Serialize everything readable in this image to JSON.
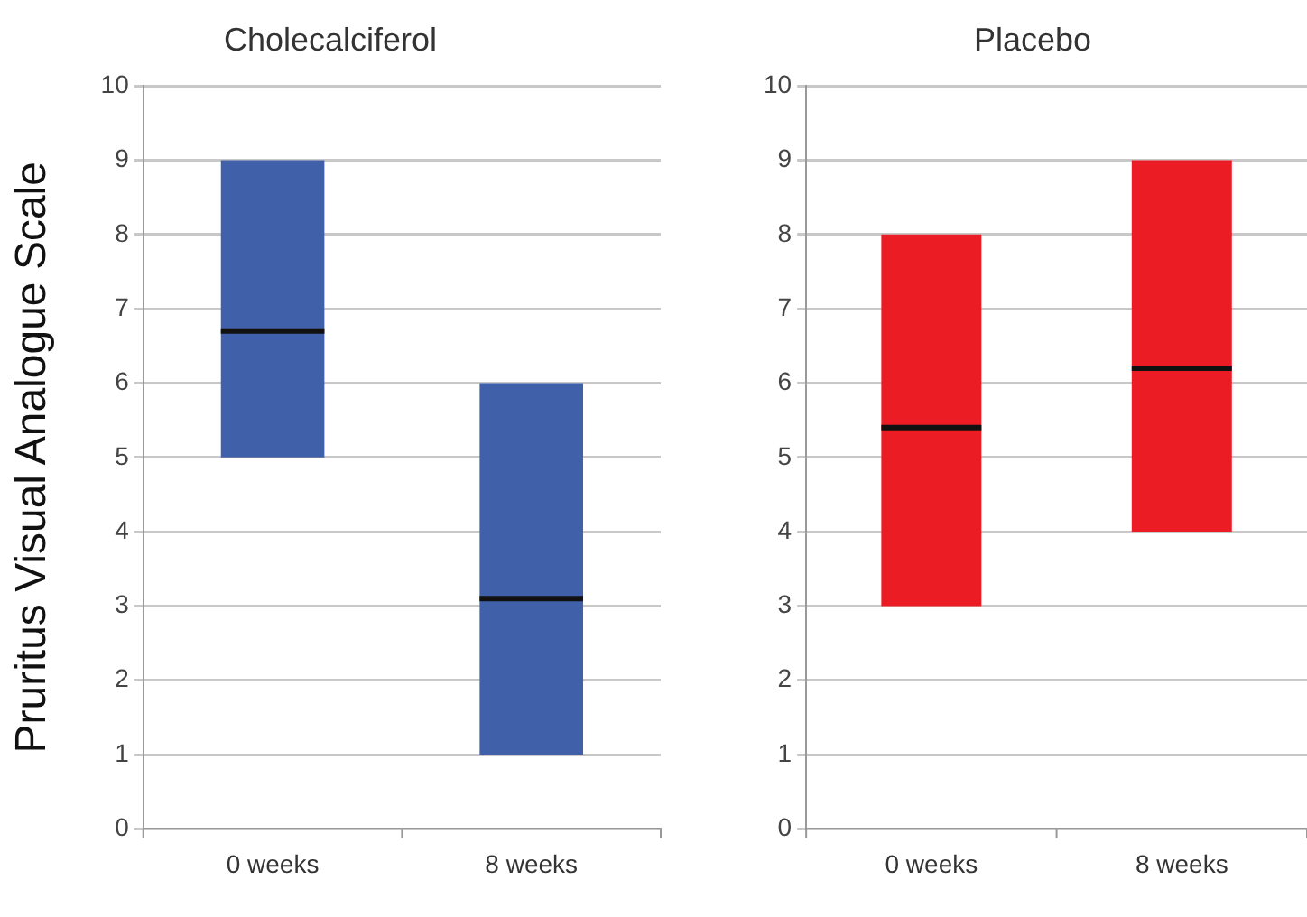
{
  "chart_data": [
    {
      "type": "box",
      "title": "Cholecalciferol",
      "ylabel": "Pruritus Visual Analogue Scale",
      "categories": [
        "0 weeks",
        "8 weeks"
      ],
      "ylim": [
        0,
        10
      ],
      "yticks": [
        0,
        1,
        2,
        3,
        4,
        5,
        6,
        7,
        8,
        9,
        10
      ],
      "grid": "y",
      "legend": false,
      "series": [
        {
          "color": "#4060aa",
          "boxes": [
            {
              "low": 5,
              "q1": 5,
              "median": 6.7,
              "q3": 9,
              "high": 9
            },
            {
              "low": 1,
              "q1": 1,
              "median": 3.1,
              "q3": 6,
              "high": 6
            }
          ]
        }
      ]
    },
    {
      "type": "box",
      "title": "Placebo",
      "categories": [
        "0 weeks",
        "8 weeks"
      ],
      "ylim": [
        0,
        10
      ],
      "yticks": [
        0,
        1,
        2,
        3,
        4,
        5,
        6,
        7,
        8,
        9,
        10
      ],
      "grid": "y",
      "legend": false,
      "series": [
        {
          "color": "#ec1c24",
          "boxes": [
            {
              "low": 3,
              "q1": 3,
              "median": 5.4,
              "q3": 8,
              "high": 8
            },
            {
              "low": 4,
              "q1": 4,
              "median": 6.2,
              "q3": 9,
              "high": 9
            }
          ]
        }
      ]
    }
  ]
}
